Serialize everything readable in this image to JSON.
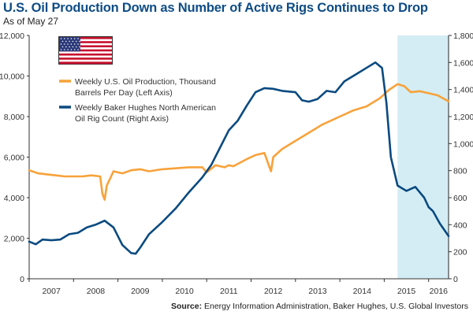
{
  "header": {
    "title": "U.S. Oil Production Down as Number of Active Rigs Continues to Drop",
    "subtitle": "As of May 27"
  },
  "source": {
    "label": "Source:",
    "text": " Energy Information Administration, Baker Hughes, U.S. Global Investors"
  },
  "flag_icon": "us-flag-icon",
  "colors": {
    "oil": "#f7a23a",
    "rigs": "#0a4a80",
    "shade": "#d4edf4",
    "axis": "#555555"
  },
  "chart_data": {
    "type": "line",
    "title": "U.S. Oil Production Down as Number of Active Rigs Continues to Drop",
    "subtitle": "As of May 27",
    "x_tick_labels": [
      "2007",
      "2008",
      "2009",
      "2010",
      "2011",
      "2012",
      "2013",
      "2014",
      "2015",
      "2016"
    ],
    "xlim": [
      2007.0,
      2016.45
    ],
    "left_axis": {
      "label": "Thousand Barrels Per Day",
      "ylim": [
        0,
        12000
      ],
      "ticks": [
        0,
        2000,
        4000,
        6000,
        8000,
        10000,
        12000
      ],
      "tick_labels": [
        "0",
        "2,000",
        "4,000",
        "6,000",
        "8,000",
        "10,000",
        "12,000"
      ]
    },
    "right_axis": {
      "label": "Oil Rig Count",
      "ylim": [
        0,
        1800
      ],
      "ticks": [
        0,
        200,
        400,
        600,
        800,
        1000,
        1200,
        1400,
        1600,
        1800
      ],
      "tick_labels": [
        "0",
        "200",
        "400",
        "600",
        "800",
        "1,000",
        "1,200",
        "1,400",
        "1,600",
        "1,800"
      ]
    },
    "shaded_region": [
      2015.3,
      2016.45
    ],
    "grid": false,
    "legend_position": "top-left",
    "series": [
      {
        "name": "Weekly U.S. Oil Production, Thousand Barrels Per Day (Left Axis)",
        "legend_lines": [
          "Weekly U.S. Oil Production, Thousand",
          "Barrels Per Day (Left Axis)"
        ],
        "axis": "left",
        "color": "#f7a23a",
        "x": [
          2007.0,
          2007.2,
          2007.4,
          2007.6,
          2007.8,
          2008.0,
          2008.2,
          2008.4,
          2008.6,
          2008.65,
          2008.7,
          2008.75,
          2008.9,
          2009.1,
          2009.3,
          2009.5,
          2009.7,
          2010.0,
          2010.3,
          2010.6,
          2010.9,
          2011.0,
          2011.2,
          2011.4,
          2011.5,
          2011.6,
          2011.9,
          2012.1,
          2012.3,
          2012.45,
          2012.5,
          2012.7,
          2013.0,
          2013.3,
          2013.6,
          2014.0,
          2014.3,
          2014.6,
          2014.9,
          2015.1,
          2015.3,
          2015.45,
          2015.6,
          2015.8,
          2016.0,
          2016.2,
          2016.45
        ],
        "values": [
          5350,
          5200,
          5150,
          5100,
          5050,
          5050,
          5050,
          5100,
          5050,
          4200,
          3900,
          4600,
          5300,
          5200,
          5350,
          5400,
          5300,
          5400,
          5450,
          5500,
          5500,
          5250,
          5600,
          5500,
          5600,
          5550,
          5900,
          6100,
          6200,
          5300,
          6000,
          6400,
          6800,
          7200,
          7600,
          8000,
          8300,
          8500,
          8900,
          9300,
          9600,
          9500,
          9200,
          9250,
          9150,
          9050,
          8750
        ]
      },
      {
        "name": "Weekly Baker Hughes North American Oil Rig Count (Right Axis)",
        "legend_lines": [
          "Weekly Baker Hughes North American",
          "Oil Rig Count (Right Axis)"
        ],
        "axis": "right",
        "color": "#0a4a80",
        "x": [
          2007.0,
          2007.15,
          2007.3,
          2007.5,
          2007.7,
          2007.9,
          2008.1,
          2008.3,
          2008.5,
          2008.7,
          2008.9,
          2009.1,
          2009.3,
          2009.4,
          2009.5,
          2009.7,
          2010.0,
          2010.3,
          2010.6,
          2010.9,
          2011.1,
          2011.3,
          2011.5,
          2011.7,
          2011.9,
          2012.1,
          2012.3,
          2012.5,
          2012.7,
          2013.0,
          2013.15,
          2013.3,
          2013.5,
          2013.7,
          2013.9,
          2014.1,
          2014.4,
          2014.6,
          2014.8,
          2014.95,
          2015.05,
          2015.15,
          2015.3,
          2015.5,
          2015.7,
          2015.9,
          2016.0,
          2016.1,
          2016.25,
          2016.45
        ],
        "values": [
          275,
          255,
          290,
          285,
          290,
          330,
          340,
          380,
          400,
          430,
          380,
          250,
          190,
          185,
          230,
          330,
          420,
          520,
          640,
          750,
          840,
          970,
          1100,
          1170,
          1280,
          1380,
          1410,
          1405,
          1390,
          1380,
          1320,
          1310,
          1330,
          1390,
          1380,
          1460,
          1520,
          1560,
          1600,
          1560,
          1300,
          900,
          690,
          650,
          680,
          600,
          530,
          500,
          410,
          316
        ]
      }
    ]
  }
}
